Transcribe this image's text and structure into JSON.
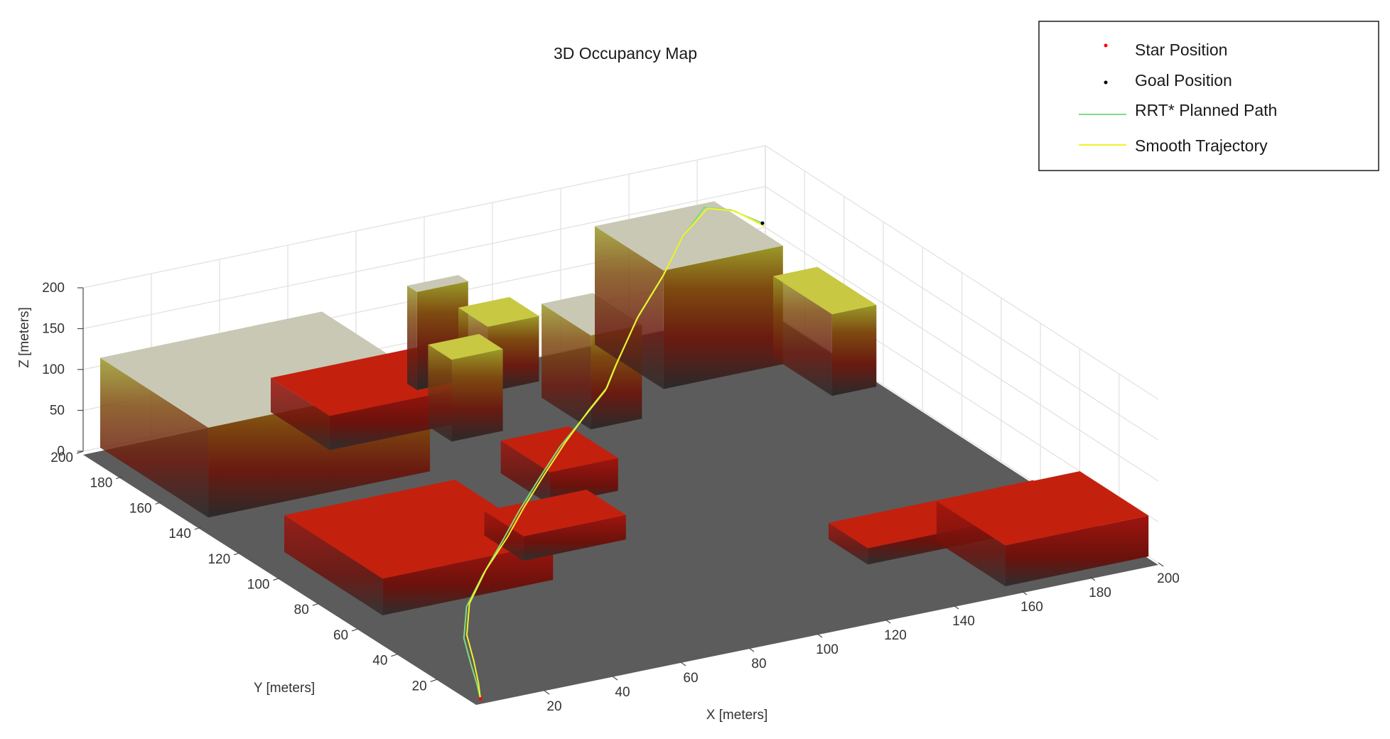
{
  "chart_data": {
    "type": "3d-occupancy-map",
    "title": "3D Occupancy Map",
    "xlabel": "X [meters]",
    "ylabel": "Y [meters]",
    "zlabel": "Z [meters]",
    "xlim": [
      0,
      200
    ],
    "ylim": [
      0,
      200
    ],
    "zlim": [
      0,
      200
    ],
    "xticks": [
      20,
      40,
      60,
      80,
      100,
      120,
      140,
      160,
      180,
      200
    ],
    "yticks": [
      20,
      40,
      60,
      80,
      100,
      120,
      140,
      160,
      180,
      200
    ],
    "zticks": [
      0,
      50,
      100,
      150,
      200
    ],
    "grid": true,
    "legend": {
      "placement": "top-right",
      "entries": [
        {
          "label": "Star Position",
          "kind": "marker",
          "color": "#ff0000"
        },
        {
          "label": "Goal Position",
          "kind": "marker",
          "color": "#000000"
        },
        {
          "label": "RRT* Planned Path",
          "kind": "line",
          "color": "#7fdc7f"
        },
        {
          "label": "Smooth Trajectory",
          "kind": "line",
          "color": "#f2f227"
        }
      ]
    },
    "obstacles": [
      {
        "x": [
          5,
          70
        ],
        "y": [
          145,
          200
        ],
        "z": [
          0,
          110
        ]
      },
      {
        "x": [
          55,
          100
        ],
        "y": [
          170,
          200
        ],
        "z": [
          0,
          42
        ]
      },
      {
        "x": [
          85,
          100
        ],
        "y": [
          160,
          172
        ],
        "z": [
          0,
          100
        ]
      },
      {
        "x": [
          95,
          110
        ],
        "y": [
          195,
          200
        ],
        "z": [
          0,
          120
        ]
      },
      {
        "x": [
          110,
          125
        ],
        "y": [
          185,
          200
        ],
        "z": [
          0,
          80
        ]
      },
      {
        "x": [
          120,
          135
        ],
        "y": [
          150,
          175
        ],
        "z": [
          0,
          115
        ]
      },
      {
        "x": [
          150,
          185
        ],
        "y": [
          165,
          200
        ],
        "z": [
          0,
          145
        ]
      },
      {
        "x": [
          185,
          198
        ],
        "y": [
          140,
          170
        ],
        "z": [
          0,
          100
        ]
      },
      {
        "x": [
          10,
          60
        ],
        "y": [
          65,
          115
        ],
        "z": [
          0,
          45
        ]
      },
      {
        "x": [
          60,
          90
        ],
        "y": [
          80,
          100
        ],
        "z": [
          0,
          30
        ]
      },
      {
        "x": [
          85,
          105
        ],
        "y": [
          110,
          135
        ],
        "z": [
          0,
          40
        ]
      },
      {
        "x": [
          135,
          195
        ],
        "y": [
          35,
          55
        ],
        "z": [
          0,
          20
        ]
      },
      {
        "x": [
          158,
          200
        ],
        "y": [
          5,
          40
        ],
        "z": [
          0,
          50
        ]
      }
    ],
    "series": [
      {
        "name": "RRT* Planned Path",
        "color": "#7fdc7f",
        "x": [
          3,
          6,
          10,
          16,
          26,
          40,
          55,
          68,
          82,
          96,
          112,
          122,
          130,
          145,
          160,
          172,
          182,
          190,
          198
        ],
        "y": [
          3,
          10,
          20,
          34,
          50,
          66,
          82,
          96,
          110,
          124,
          138,
          146,
          155,
          170,
          183,
          194,
          200,
          200,
          198
        ],
        "z": [
          0,
          5,
          10,
          15,
          20,
          22,
          26,
          30,
          36,
          40,
          45,
          52,
          60,
          82,
          100,
          120,
          140,
          130,
          110
        ]
      },
      {
        "name": "Smooth Trajectory",
        "color": "#f2f227",
        "x": [
          3,
          7,
          12,
          18,
          28,
          42,
          57,
          70,
          84,
          98,
          113,
          123,
          131,
          146,
          161,
          173,
          183,
          191,
          198
        ],
        "y": [
          3,
          11,
          22,
          36,
          52,
          68,
          83,
          97,
          111,
          125,
          139,
          147,
          156,
          171,
          184,
          195,
          200,
          200,
          197
        ],
        "z": [
          0,
          4,
          9,
          14,
          19,
          23,
          27,
          31,
          37,
          41,
          46,
          53,
          61,
          83,
          101,
          121,
          138,
          128,
          108
        ]
      }
    ],
    "start_position": {
      "x": 3,
      "y": 3,
      "z": 0
    },
    "goal_position": {
      "x": 198,
      "y": 198,
      "z": 110
    }
  }
}
